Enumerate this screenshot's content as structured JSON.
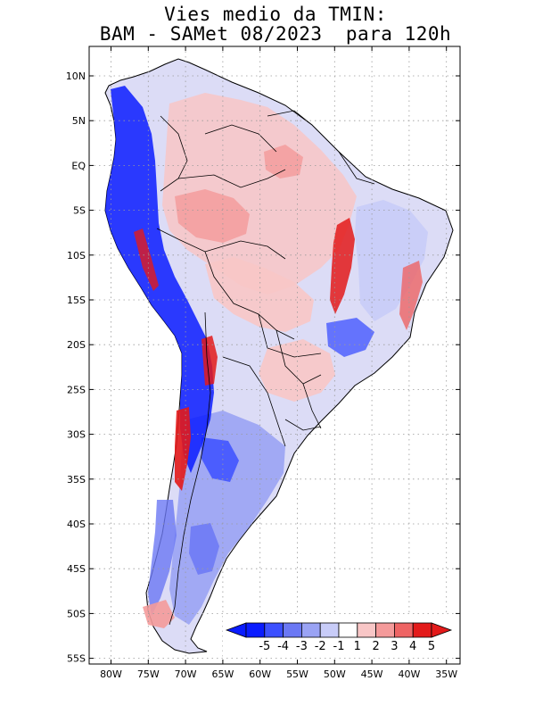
{
  "title_line1": "Vies medio da TMIN:",
  "title_line2": "BAM - SAMet 08/2023  para 120h",
  "y_ticks": [
    "10N",
    "5N",
    "EQ",
    "5S",
    "10S",
    "15S",
    "20S",
    "25S",
    "30S",
    "35S",
    "40S",
    "45S",
    "50S",
    "55S"
  ],
  "x_ticks": [
    "80W",
    "75W",
    "70W",
    "65W",
    "60W",
    "55W",
    "50W",
    "45W",
    "40W",
    "35W"
  ],
  "colorbar": {
    "labels": [
      "-5",
      "-4",
      "-3",
      "-2",
      "-1",
      "1",
      "2",
      "3",
      "4",
      "5"
    ],
    "colors": [
      "#0a1cff",
      "#3c50ff",
      "#6b78f4",
      "#9aa3f4",
      "#c8ccf8",
      "#ffffff",
      "#f8c6c6",
      "#f49a9a",
      "#ee6464",
      "#e31a1a"
    ]
  },
  "colors": {
    "deep_blue": "#0a1cff",
    "blue": "#3c50ff",
    "light_blue": "#c8ccf8",
    "light_red": "#f8c6c6",
    "red": "#e31a1a",
    "coast": "#000000",
    "grid": "#9a9a9a"
  }
}
